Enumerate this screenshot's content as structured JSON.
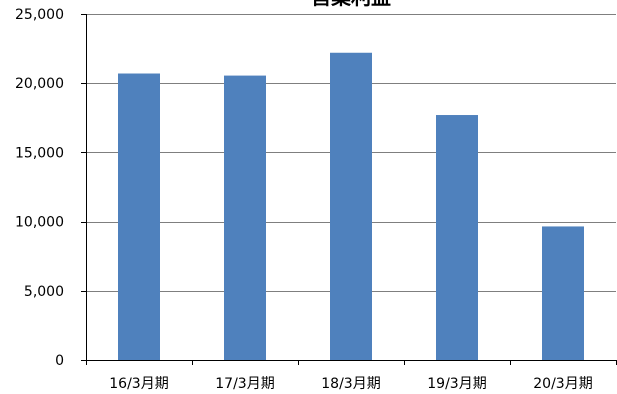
{
  "chart_data": {
    "type": "bar",
    "title": "営業利益",
    "categories": [
      "16/3月期",
      "17/3月期",
      "18/3月期",
      "19/3月期",
      "20/3月期"
    ],
    "values": [
      20700,
      20550,
      22200,
      17700,
      9650
    ],
    "ylim": [
      0,
      25000
    ],
    "y_ticks": [
      0,
      5000,
      10000,
      15000,
      20000,
      25000
    ],
    "y_tick_labels": [
      "0",
      "5,000",
      "10,000",
      "15,000",
      "20,000",
      "25,000"
    ],
    "grid": true,
    "legend": "none",
    "colors": {
      "bar": "#4F81BD",
      "grid": "#7f7f7f",
      "axis": "#000000"
    }
  }
}
